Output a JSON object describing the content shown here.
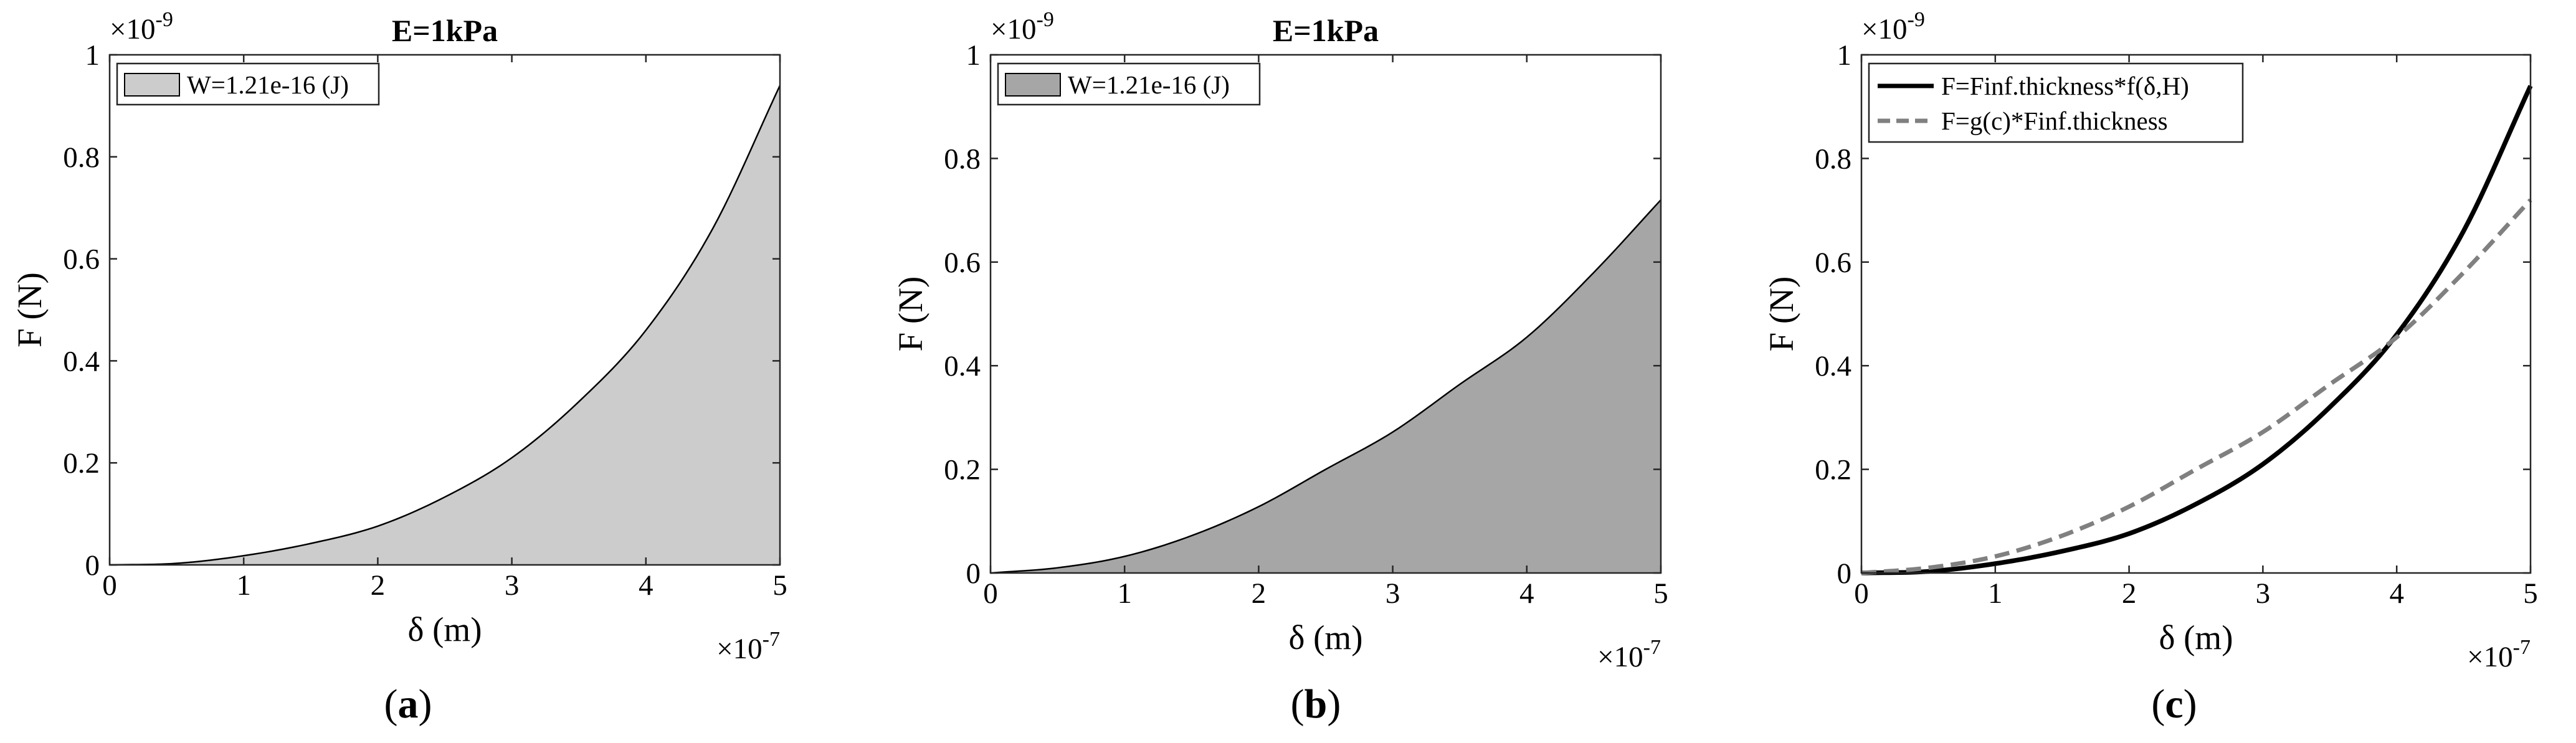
{
  "chart_data": [
    {
      "type": "area",
      "caption_letter": "a",
      "title": "E=1kPa",
      "xlabel": "δ (m)",
      "ylabel": "F (N)",
      "x_exponent": "-7",
      "y_exponent": "-9",
      "x_multiplier_prefix": "×10",
      "y_multiplier_prefix": "×10",
      "xlim": [
        0,
        5
      ],
      "ylim": [
        0,
        1
      ],
      "xticks": [
        "0",
        "1",
        "2",
        "3",
        "4",
        "5"
      ],
      "yticks": [
        "0",
        "0.2",
        "0.4",
        "0.6",
        "0.8",
        "1"
      ],
      "grid": false,
      "legend_position": "top-left",
      "series": [
        {
          "name": "W=1.21e-16 (J)",
          "color": "#cccccc",
          "line_color": "#000000",
          "style": "filled-area",
          "x": [
            0,
            0.5,
            1,
            1.5,
            2,
            2.5,
            3,
            3.5,
            4,
            4.5,
            5
          ],
          "y": [
            0,
            0.003,
            0.018,
            0.042,
            0.076,
            0.133,
            0.21,
            0.32,
            0.46,
            0.66,
            0.94
          ]
        }
      ]
    },
    {
      "type": "area",
      "caption_letter": "b",
      "title": "E=1kPa",
      "xlabel": "δ (m)",
      "ylabel": "F (N)",
      "x_exponent": "-7",
      "y_exponent": "-9",
      "x_multiplier_prefix": "×10",
      "y_multiplier_prefix": "×10",
      "xlim": [
        0,
        5
      ],
      "ylim": [
        0,
        1
      ],
      "xticks": [
        "0",
        "1",
        "2",
        "3",
        "4",
        "5"
      ],
      "yticks": [
        "0",
        "0.2",
        "0.4",
        "0.6",
        "0.8",
        "1"
      ],
      "grid": false,
      "legend_position": "top-left",
      "series": [
        {
          "name": "W=1.21e-16 (J)",
          "color": "#a6a6a6",
          "line_color": "#000000",
          "style": "filled-area",
          "x": [
            0,
            0.5,
            1,
            1.5,
            2,
            2.5,
            3,
            3.5,
            4,
            4.5,
            5
          ],
          "y": [
            0,
            0.01,
            0.032,
            0.072,
            0.128,
            0.2,
            0.272,
            0.364,
            0.455,
            0.58,
            0.72
          ]
        }
      ]
    },
    {
      "type": "line",
      "caption_letter": "c",
      "title": "",
      "xlabel": "δ (m)",
      "ylabel": "F (N)",
      "x_exponent": "-7",
      "y_exponent": "-9",
      "x_multiplier_prefix": "×10",
      "y_multiplier_prefix": "×10",
      "xlim": [
        0,
        5
      ],
      "ylim": [
        0,
        1
      ],
      "xticks": [
        "0",
        "1",
        "2",
        "3",
        "4",
        "5"
      ],
      "yticks": [
        "0",
        "0.2",
        "0.4",
        "0.6",
        "0.8",
        "1"
      ],
      "grid": false,
      "legend_position": "top-left",
      "series": [
        {
          "name": "F=Finf.thickness*f(δ,H)",
          "color": "#000000",
          "style": "solid",
          "x": [
            0,
            0.5,
            1,
            1.5,
            2,
            2.5,
            3,
            3.5,
            4,
            4.5,
            5
          ],
          "y": [
            0,
            0.003,
            0.018,
            0.042,
            0.076,
            0.133,
            0.21,
            0.32,
            0.46,
            0.66,
            0.94
          ]
        },
        {
          "name": "F=g(c)*Finf.thickness",
          "color": "#808080",
          "style": "dashed",
          "x": [
            0,
            0.5,
            1,
            1.5,
            2,
            2.5,
            3,
            3.5,
            4,
            4.5,
            5
          ],
          "y": [
            0,
            0.01,
            0.032,
            0.072,
            0.128,
            0.2,
            0.272,
            0.364,
            0.455,
            0.58,
            0.72
          ]
        }
      ]
    }
  ]
}
